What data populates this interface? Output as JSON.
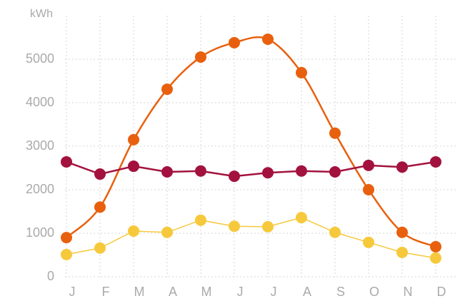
{
  "chart_data": {
    "type": "line",
    "y_axis_label": "kWh",
    "categories": [
      "J",
      "F",
      "M",
      "A",
      "M",
      "J",
      "J",
      "A",
      "S",
      "O",
      "N",
      "D"
    ],
    "ylim": [
      0,
      6000
    ],
    "yticks": [
      0,
      1000,
      2000,
      3000,
      4000,
      5000
    ],
    "grid": true,
    "series": [
      {
        "color": "#e8600e",
        "smooth": true,
        "values": [
          900,
          1600,
          3150,
          4310,
          5050,
          5380,
          5460,
          4690,
          3300,
          2000,
          1020,
          690
        ]
      },
      {
        "color": "#a3123e",
        "smooth": false,
        "values": [
          2640,
          2360,
          2540,
          2410,
          2430,
          2310,
          2390,
          2430,
          2410,
          2560,
          2520,
          2640
        ]
      },
      {
        "color": "#f6c93d",
        "smooth": false,
        "values": [
          510,
          660,
          1050,
          1020,
          1300,
          1160,
          1150,
          1360,
          1020,
          790,
          560,
          430
        ]
      }
    ]
  }
}
